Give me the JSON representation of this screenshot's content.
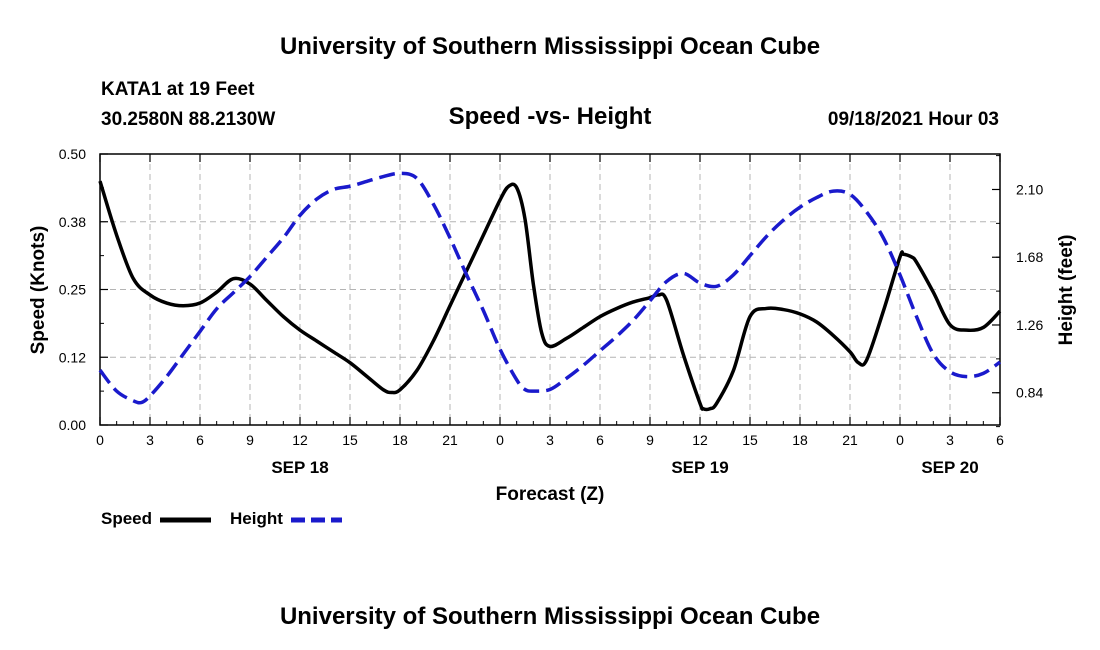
{
  "colors": {
    "speed": "#000000",
    "height": "#1a1acc",
    "grid": "#b4b4b4"
  },
  "chart_data": {
    "type": "line",
    "title": "University of Southern Mississippi Ocean Cube",
    "footer_title": "University of Southern Mississippi Ocean Cube",
    "station": "KATA1 at 19 Feet",
    "location": "30.2580N  88.2130W",
    "subtitle": "Speed -vs- Height",
    "issued": "09/18/2021 Hour 03",
    "xlabel": "Forecast (Z)",
    "ylabel_left": "Speed (Knots)",
    "ylabel_right": "Height (feet)",
    "xlim": [
      0,
      54
    ],
    "ylim_left": [
      0,
      0.5
    ],
    "ylim_right": [
      0.64,
      2.32
    ],
    "grid": true,
    "x_ticks": [
      0,
      3,
      6,
      9,
      12,
      15,
      18,
      21,
      24,
      27,
      30,
      33,
      36,
      39,
      42,
      45,
      48,
      51,
      54
    ],
    "x_tick_labels": [
      "0",
      "3",
      "6",
      "9",
      "12",
      "15",
      "18",
      "21",
      "0",
      "3",
      "6",
      "9",
      "12",
      "15",
      "18",
      "21",
      "0",
      "3",
      "6"
    ],
    "day_labels": [
      {
        "x": 12,
        "label": "SEP 18"
      },
      {
        "x": 36,
        "label": "SEP 19"
      },
      {
        "x": 51,
        "label": "SEP 20"
      }
    ],
    "y_left_ticks": [
      0,
      0.125,
      0.25,
      0.375,
      0.5
    ],
    "y_left_tick_labels": [
      "0.00",
      "0.12",
      "0.25",
      "0.38",
      "0.50"
    ],
    "y_right_ticks": [
      0.84,
      1.26,
      1.68,
      2.1
    ],
    "y_right_tick_labels": [
      "0.84",
      "1.26",
      "1.68",
      "2.10"
    ],
    "legend": {
      "placement": "bottom-left",
      "entries": [
        "Speed",
        "Height"
      ]
    },
    "series": [
      {
        "name": "Speed",
        "axis": "left",
        "style": "solid",
        "x": [
          0,
          1,
          2,
          3,
          4,
          5,
          6,
          7,
          8,
          9,
          10,
          11,
          12,
          13,
          14,
          15,
          16,
          17,
          17.5,
          18,
          19,
          20,
          21,
          22,
          23,
          24,
          24.5,
          25,
          25.5,
          26,
          26.5,
          27,
          28,
          29,
          30,
          31,
          32,
          33,
          33.5,
          34,
          35,
          36,
          36.2,
          36.6,
          37,
          38,
          39,
          40,
          41,
          42,
          43,
          44,
          45,
          45.5,
          46,
          47,
          48,
          48.2,
          48.7,
          49,
          50,
          51,
          52,
          53,
          54
        ],
        "values": [
          0.45,
          0.35,
          0.27,
          0.24,
          0.225,
          0.22,
          0.225,
          0.245,
          0.27,
          0.26,
          0.23,
          0.2,
          0.175,
          0.155,
          0.135,
          0.115,
          0.09,
          0.065,
          0.06,
          0.065,
          0.1,
          0.155,
          0.22,
          0.285,
          0.35,
          0.415,
          0.44,
          0.438,
          0.38,
          0.26,
          0.17,
          0.145,
          0.16,
          0.18,
          0.2,
          0.215,
          0.227,
          0.235,
          0.24,
          0.23,
          0.13,
          0.04,
          0.03,
          0.03,
          0.04,
          0.1,
          0.2,
          0.215,
          0.213,
          0.205,
          0.19,
          0.165,
          0.135,
          0.115,
          0.12,
          0.21,
          0.31,
          0.315,
          0.31,
          0.3,
          0.245,
          0.185,
          0.175,
          0.18,
          0.21
        ]
      },
      {
        "name": "Height",
        "axis": "right",
        "style": "dashed",
        "x": [
          0,
          1,
          2,
          2.5,
          3,
          4,
          5,
          6,
          7,
          8,
          9,
          10,
          11,
          12,
          13,
          14,
          15,
          16,
          17,
          18,
          19,
          20,
          21,
          22,
          23,
          24,
          25,
          25.5,
          26,
          27,
          28,
          29,
          30,
          31,
          32,
          33,
          34,
          35,
          36,
          37,
          38,
          39,
          40,
          41,
          42,
          43,
          44,
          45,
          46,
          47,
          48,
          49,
          50,
          51,
          52,
          53,
          54
        ],
        "values": [
          0.98,
          0.85,
          0.79,
          0.78,
          0.82,
          0.94,
          1.08,
          1.22,
          1.36,
          1.46,
          1.56,
          1.68,
          1.8,
          1.94,
          2.04,
          2.1,
          2.12,
          2.15,
          2.18,
          2.2,
          2.17,
          2.01,
          1.8,
          1.57,
          1.35,
          1.11,
          0.92,
          0.86,
          0.85,
          0.86,
          0.93,
          1.01,
          1.1,
          1.19,
          1.29,
          1.41,
          1.53,
          1.58,
          1.52,
          1.5,
          1.57,
          1.69,
          1.81,
          1.91,
          1.99,
          2.05,
          2.09,
          2.07,
          1.96,
          1.8,
          1.57,
          1.31,
          1.08,
          0.97,
          0.94,
          0.96,
          1.03
        ]
      }
    ]
  }
}
